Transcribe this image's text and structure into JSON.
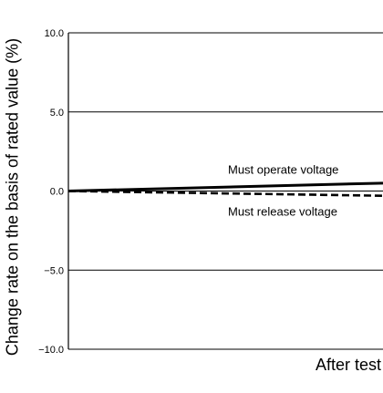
{
  "chart_data": {
    "type": "line",
    "ylabel": "Change rate on the basis of rated value (%)",
    "xlabel": "After test",
    "ylim": [
      -10.0,
      10.0
    ],
    "yticks": [
      10.0,
      5.0,
      0.0,
      -5.0,
      -10.0
    ],
    "ytick_labels": [
      "10.0",
      "5.0",
      "0.0",
      "−5.0",
      "−10.0"
    ],
    "grid": true,
    "x": [
      0,
      1
    ],
    "series": [
      {
        "name": "Must operate voltage",
        "values": [
          0.0,
          0.5
        ],
        "style": "solid",
        "color": "#000000"
      },
      {
        "name": "Must release voltage",
        "values": [
          0.0,
          -0.3
        ],
        "style": "dashed",
        "color": "#000000"
      }
    ],
    "annotations": [
      "Must operate voltage",
      "Must release voltage"
    ]
  }
}
